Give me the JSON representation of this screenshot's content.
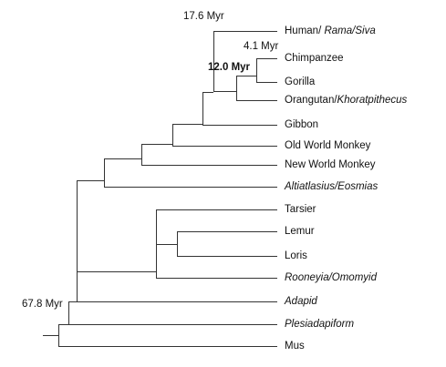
{
  "taxa": [
    {
      "id": "human",
      "label": "Human/ ",
      "italic_part": "Rama/Siva"
    },
    {
      "id": "chimp",
      "label": "Chimpanzee"
    },
    {
      "id": "gorilla",
      "label": "Gorilla"
    },
    {
      "id": "orangutan",
      "label": "Orangutan/",
      "italic_part": "Khoratpithecus"
    },
    {
      "id": "gibbon",
      "label": "Gibbon"
    },
    {
      "id": "owm",
      "label": "Old World Monkey"
    },
    {
      "id": "nwm",
      "label": "New World Monkey"
    },
    {
      "id": "altiatlasius",
      "label": "",
      "italic_part": "Altiatlasius/Eosmias"
    },
    {
      "id": "tarsier",
      "label": "Tarsier"
    },
    {
      "id": "lemur",
      "label": "Lemur"
    },
    {
      "id": "loris",
      "label": "Loris"
    },
    {
      "id": "rooneyia",
      "label": "",
      "italic_part": "Rooneyia/Omomyid"
    },
    {
      "id": "adapid",
      "label": "",
      "italic_part": "Adapid"
    },
    {
      "id": "plesiadapiform",
      "label": "",
      "italic_part": "Plesiadapiform"
    },
    {
      "id": "mus",
      "label": "Mus"
    }
  ],
  "node_labels": {
    "human_split": "17.6 Myr",
    "chimp_gorilla": "4.1 Myr",
    "orangutan_split": "12.0 Myr",
    "root": "67.8 Myr"
  },
  "colors": {
    "line": "#333333",
    "text": "#111111"
  }
}
